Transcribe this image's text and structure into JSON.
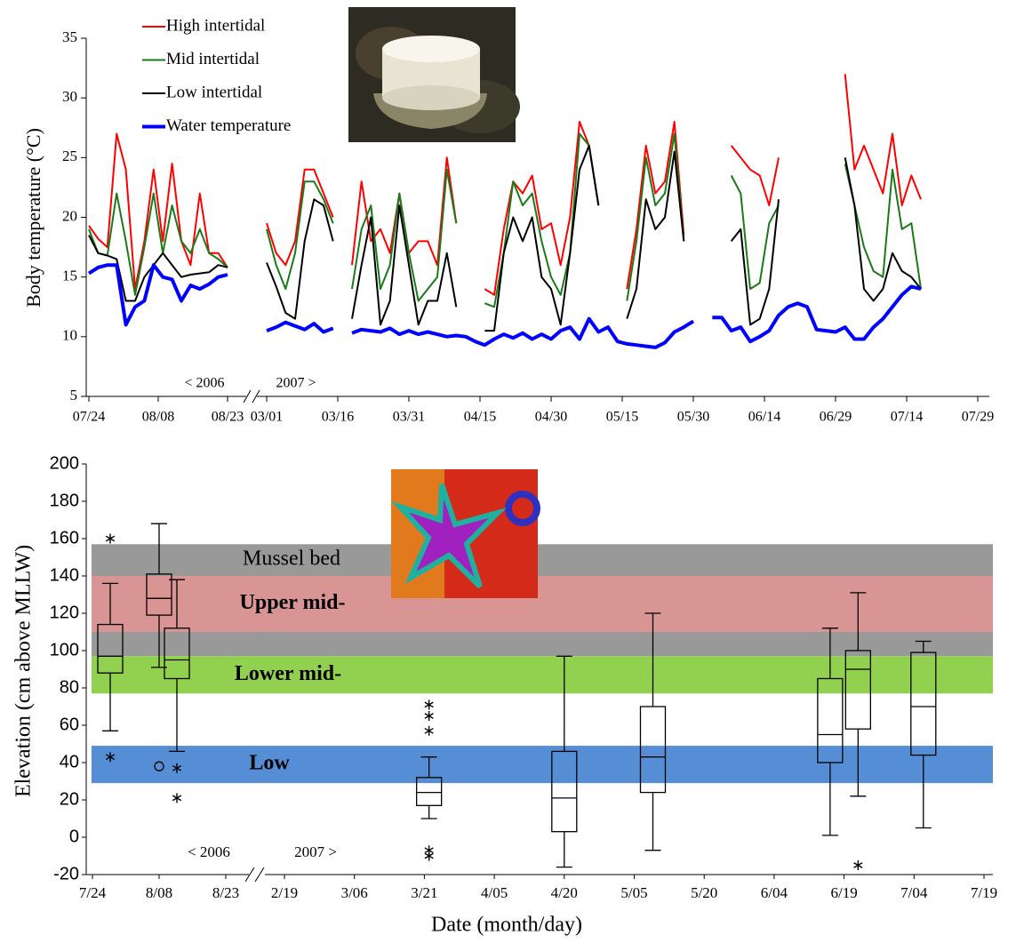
{
  "chart_data": [
    {
      "type": "line",
      "ylabel": "Body temperature (°C)",
      "annotations": [
        "< 2006",
        "2007 >"
      ],
      "legend": "upper left",
      "ylim": [
        5,
        35
      ],
      "yticks": [
        5,
        10,
        15,
        20,
        25,
        30,
        35
      ],
      "xticks": [
        "07/24",
        "08/08",
        "08/23",
        "03/01",
        "03/16",
        "03/31",
        "04/15",
        "04/30",
        "05/15",
        "05/30",
        "06/14",
        "06/29",
        "07/14",
        "07/29"
      ],
      "x": [
        "07/24",
        "07/26",
        "07/28",
        "07/30",
        "08/01",
        "08/03",
        "08/05",
        "08/07",
        "08/09",
        "08/11",
        "08/13",
        "08/15",
        "08/17",
        "08/19",
        "08/21",
        "08/23",
        "03/01",
        "03/03",
        "03/05",
        "03/07",
        "03/09",
        "03/11",
        "03/13",
        "03/15",
        "03/17",
        "03/19",
        "03/21",
        "03/23",
        "03/25",
        "03/27",
        "03/29",
        "03/31",
        "04/02",
        "04/04",
        "04/06",
        "04/08",
        "04/10",
        "04/12",
        "04/14",
        "04/16",
        "04/18",
        "04/20",
        "04/22",
        "04/24",
        "04/26",
        "04/28",
        "04/30",
        "05/02",
        "05/04",
        "05/06",
        "05/08",
        "05/10",
        "05/12",
        "05/14",
        "05/16",
        "05/18",
        "05/20",
        "05/22",
        "05/24",
        "05/26",
        "05/28",
        "05/30",
        "06/01",
        "06/03",
        "06/05",
        "06/07",
        "06/09",
        "06/11",
        "06/13",
        "06/15",
        "06/17",
        "06/19",
        "06/21",
        "06/23",
        "06/25",
        "06/27",
        "06/29",
        "07/01",
        "07/03",
        "07/05",
        "07/07",
        "07/09",
        "07/11",
        "07/13",
        "07/15",
        "07/17"
      ],
      "series": [
        {
          "name": "High intertidal",
          "color": "#ff0000",
          "linewidth": 2,
          "values": [
            19.3,
            18.2,
            17.5,
            27,
            24,
            14,
            18,
            24,
            18,
            24.5,
            18,
            16,
            22,
            17,
            17,
            15.8,
            19.5,
            17,
            16,
            18,
            24,
            24,
            22,
            20,
            null,
            16,
            23,
            18,
            19,
            17,
            22,
            17,
            18,
            18,
            16,
            25,
            19.5,
            null,
            null,
            14,
            13.5,
            19,
            23,
            22,
            23.5,
            19,
            19.5,
            16,
            20,
            28,
            26,
            21,
            null,
            null,
            14,
            19,
            26,
            22,
            23,
            28,
            18.5,
            null,
            null,
            null,
            null,
            26,
            25,
            24,
            23.5,
            21,
            25,
            null,
            null,
            null,
            null,
            null,
            null,
            32,
            24,
            26,
            24,
            22,
            27,
            21,
            23.5,
            21.5
          ]
        },
        {
          "name": "Mid intertidal",
          "color": "#1a7a1a",
          "linewidth": 2,
          "values": [
            19,
            17,
            16.8,
            22,
            18,
            13.5,
            17.5,
            22,
            17,
            21,
            18,
            17,
            19,
            17,
            16.5,
            15.8,
            19,
            16,
            14,
            17,
            23,
            23,
            21.5,
            19.5,
            null,
            14,
            19,
            21,
            14,
            16,
            22,
            17,
            13,
            14,
            15,
            24,
            19.5,
            null,
            null,
            12.8,
            12.5,
            17,
            23,
            21,
            22,
            18,
            15,
            13.5,
            17,
            27,
            26,
            21,
            null,
            null,
            13,
            18,
            25,
            21,
            22,
            27,
            18,
            null,
            null,
            null,
            null,
            23.5,
            22,
            14,
            14.5,
            19.5,
            21,
            null,
            null,
            null,
            null,
            null,
            null,
            24.5,
            21,
            17.5,
            15.5,
            15,
            24,
            19,
            19.5,
            14
          ]
        },
        {
          "name": "Low intertidal",
          "color": "#000000",
          "linewidth": 2,
          "values": [
            18.5,
            17,
            16.8,
            16.5,
            13,
            13,
            15,
            16,
            17,
            16,
            15,
            15.2,
            15.3,
            15.4,
            16,
            15.8,
            16.2,
            14.2,
            12,
            11.5,
            18,
            21.5,
            21,
            18,
            null,
            11.5,
            16,
            20,
            11,
            13,
            21,
            16,
            11,
            13,
            13,
            17,
            12.5,
            null,
            null,
            10.5,
            10.5,
            17,
            20,
            18,
            20,
            15,
            14,
            11,
            17,
            24,
            26,
            21,
            null,
            null,
            11.5,
            14,
            21.5,
            19,
            20,
            25.5,
            18,
            null,
            null,
            null,
            null,
            18,
            19,
            11,
            11.5,
            14,
            21.5,
            null,
            null,
            null,
            null,
            null,
            null,
            25,
            21,
            14,
            13,
            14,
            17,
            15.5,
            15,
            14
          ]
        },
        {
          "name": "Water temperature",
          "color": "#0000ff",
          "linewidth": 4,
          "values": [
            15.3,
            15.8,
            16,
            16,
            11,
            12.5,
            13,
            16,
            15,
            14.8,
            13,
            14.3,
            14,
            14.4,
            15,
            15.2,
            10.5,
            10.8,
            11.2,
            10.9,
            10.6,
            11.1,
            10.4,
            10.7,
            null,
            10.3,
            10.6,
            10.5,
            10.4,
            10.7,
            10.2,
            10.5,
            10.2,
            10.4,
            10.2,
            10,
            10.1,
            10,
            9.6,
            9.3,
            9.8,
            10.2,
            9.9,
            10.3,
            9.8,
            10.2,
            9.8,
            10.5,
            10.8,
            9.8,
            11.5,
            10.4,
            10.8,
            9.6,
            9.4,
            9.3,
            9.2,
            9.1,
            9.5,
            10.4,
            10.8,
            11.3,
            null,
            11.6,
            11.6,
            10.5,
            10.8,
            9.6,
            10,
            10.5,
            11.8,
            12.5,
            12.8,
            12.5,
            10.6,
            10.5,
            10.4,
            10.8,
            9.8,
            9.8,
            10.8,
            11.5,
            12.5,
            13.5,
            14.2,
            14
          ]
        }
      ]
    },
    {
      "type": "box",
      "ylabel": "Elevation (cm above MLLW)",
      "xlabel": "Date (month/day)",
      "annotations": [
        "< 2006",
        "2007 >"
      ],
      "ylim": [
        -20,
        200
      ],
      "yticks": [
        -20,
        0,
        20,
        40,
        60,
        80,
        100,
        120,
        140,
        160,
        180,
        200
      ],
      "xticks": [
        "7/24",
        "8/08",
        "8/23",
        "2/19",
        "3/06",
        "3/21",
        "4/05",
        "4/20",
        "5/05",
        "5/20",
        "6/04",
        "6/19",
        "7/04",
        "7/19"
      ],
      "bands": [
        {
          "label": "Mussel bed",
          "color": "#999999",
          "label_color": "#000000",
          "bold": false,
          "range": [
            97,
            157
          ]
        },
        {
          "label": "Upper mid-",
          "color": "#d99594",
          "label_color": "#ff0000",
          "bold": true,
          "range": [
            110,
            140
          ]
        },
        {
          "label": "Lower mid-",
          "color": "#92d050",
          "label_color": "#1a7a1a",
          "bold": true,
          "range": [
            77,
            97
          ]
        },
        {
          "label": "Low",
          "color": "#558ed5",
          "label_color": "#0000ff",
          "bold": true,
          "range": [
            29,
            49
          ]
        }
      ],
      "boxes": [
        {
          "x": "7/28",
          "whislo": 57,
          "q1": 88,
          "median": 97,
          "q3": 114,
          "whishi": 136,
          "outliers": [],
          "extremes": [
            160,
            43
          ]
        },
        {
          "x": "8/08",
          "whislo": 91,
          "q1": 119,
          "median": 128,
          "q3": 141,
          "whishi": 168,
          "outliers": [
            38
          ],
          "extremes": []
        },
        {
          "x": "8/12",
          "whislo": 46,
          "q1": 85,
          "median": 95,
          "q3": 112,
          "whishi": 138,
          "outliers": [],
          "extremes": [
            37,
            21
          ]
        },
        {
          "x": "3/22",
          "whislo": 10,
          "q1": 17,
          "median": 24,
          "q3": 32,
          "whishi": 43,
          "outliers": [],
          "extremes": [
            71,
            65,
            57,
            -7,
            -10
          ]
        },
        {
          "x": "4/20",
          "whislo": -16,
          "q1": 3,
          "median": 21,
          "q3": 46,
          "whishi": 97,
          "outliers": [],
          "extremes": []
        },
        {
          "x": "5/09",
          "whislo": -7,
          "q1": 24,
          "median": 43,
          "q3": 70,
          "whishi": 120,
          "outliers": [],
          "extremes": []
        },
        {
          "x": "6/16",
          "whislo": 1,
          "q1": 40,
          "median": 55,
          "q3": 85,
          "whishi": 112,
          "outliers": [],
          "extremes": []
        },
        {
          "x": "6/22",
          "whislo": 22,
          "q1": 58,
          "median": 90,
          "q3": 100,
          "whishi": 131,
          "outliers": [],
          "extremes": [
            -15
          ]
        },
        {
          "x": "7/06",
          "whislo": 5,
          "q1": 44,
          "median": 70,
          "q3": 99,
          "whishi": 105,
          "outliers": [],
          "extremes": []
        }
      ]
    }
  ]
}
